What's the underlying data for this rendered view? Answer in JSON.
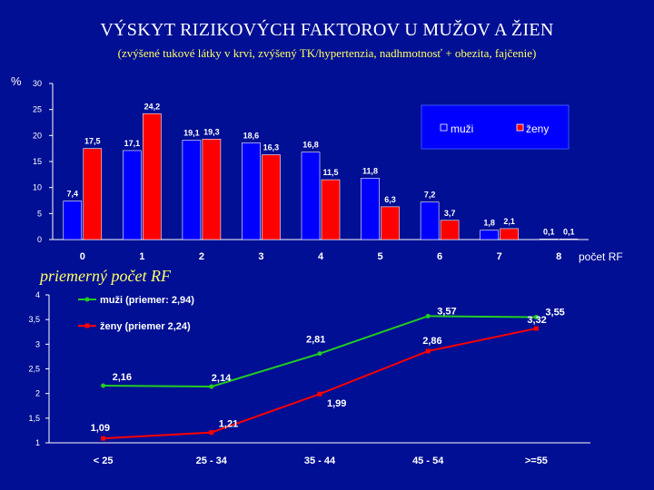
{
  "title": "VÝSKYT RIZIKOVÝCH FAKTOROV U MUŽOV A ŽIEN",
  "subtitle": "(zvýšené tukové látky v krvi, zvýšený TK/hypertenzia, nadhmotnosť + obezita, fajčenie)",
  "second_chart_label": "priemerný počet RF",
  "colors": {
    "background": "#000f93",
    "men": "#0000ff",
    "women": "#ff0000",
    "men_line": "#22cc22",
    "women_line": "#ff0000",
    "title": "#ffffff",
    "subtitle": "#ffff66"
  },
  "chart_data": [
    {
      "type": "bar",
      "ylabel": "%",
      "xlabel": "počet RF",
      "ylim": [
        0,
        30
      ],
      "yticks": [
        0,
        5,
        10,
        15,
        20,
        25,
        30
      ],
      "categories": [
        "0",
        "1",
        "2",
        "3",
        "4",
        "5",
        "6",
        "7",
        "8"
      ],
      "series": [
        {
          "name": "muži",
          "values": [
            7.4,
            17.1,
            19.1,
            18.6,
            16.8,
            11.8,
            7.2,
            1.8,
            0.1
          ],
          "labels": [
            "7,4",
            "17,1",
            "19,1",
            "18,6",
            "16,8",
            "11,8",
            "7,2",
            "1,8",
            "0,1"
          ]
        },
        {
          "name": "ženy",
          "values": [
            17.5,
            24.2,
            19.3,
            16.3,
            11.5,
            6.3,
            3.7,
            2.1,
            0.1
          ],
          "labels": [
            "17,5",
            "24,2",
            "19,3",
            "16,3",
            "11,5",
            "6,3",
            "3,7",
            "2,1",
            "0,1"
          ]
        }
      ],
      "legend": "top-right",
      "grid": false
    },
    {
      "type": "line",
      "ylim": [
        1,
        4
      ],
      "yticks": [
        "1",
        "1,5",
        "2",
        "2,5",
        "3",
        "3,5",
        "4"
      ],
      "categories": [
        "< 25",
        "25 - 34",
        "35 - 44",
        "45 - 54",
        ">=55"
      ],
      "series": [
        {
          "name": "muži (priemer: 2,94)",
          "values": [
            2.16,
            2.14,
            2.81,
            3.57,
            3.55
          ],
          "labels": [
            "2,16",
            "2,14",
            "2,81",
            "3,57",
            "3,55"
          ]
        },
        {
          "name": "ženy (priemer 2,24)",
          "values": [
            1.09,
            1.21,
            1.99,
            2.86,
            3.32
          ],
          "labels": [
            "1,09",
            "1,21",
            "1,99",
            "2,86",
            "3,32"
          ]
        }
      ],
      "legend": "top-left",
      "grid": false
    }
  ]
}
